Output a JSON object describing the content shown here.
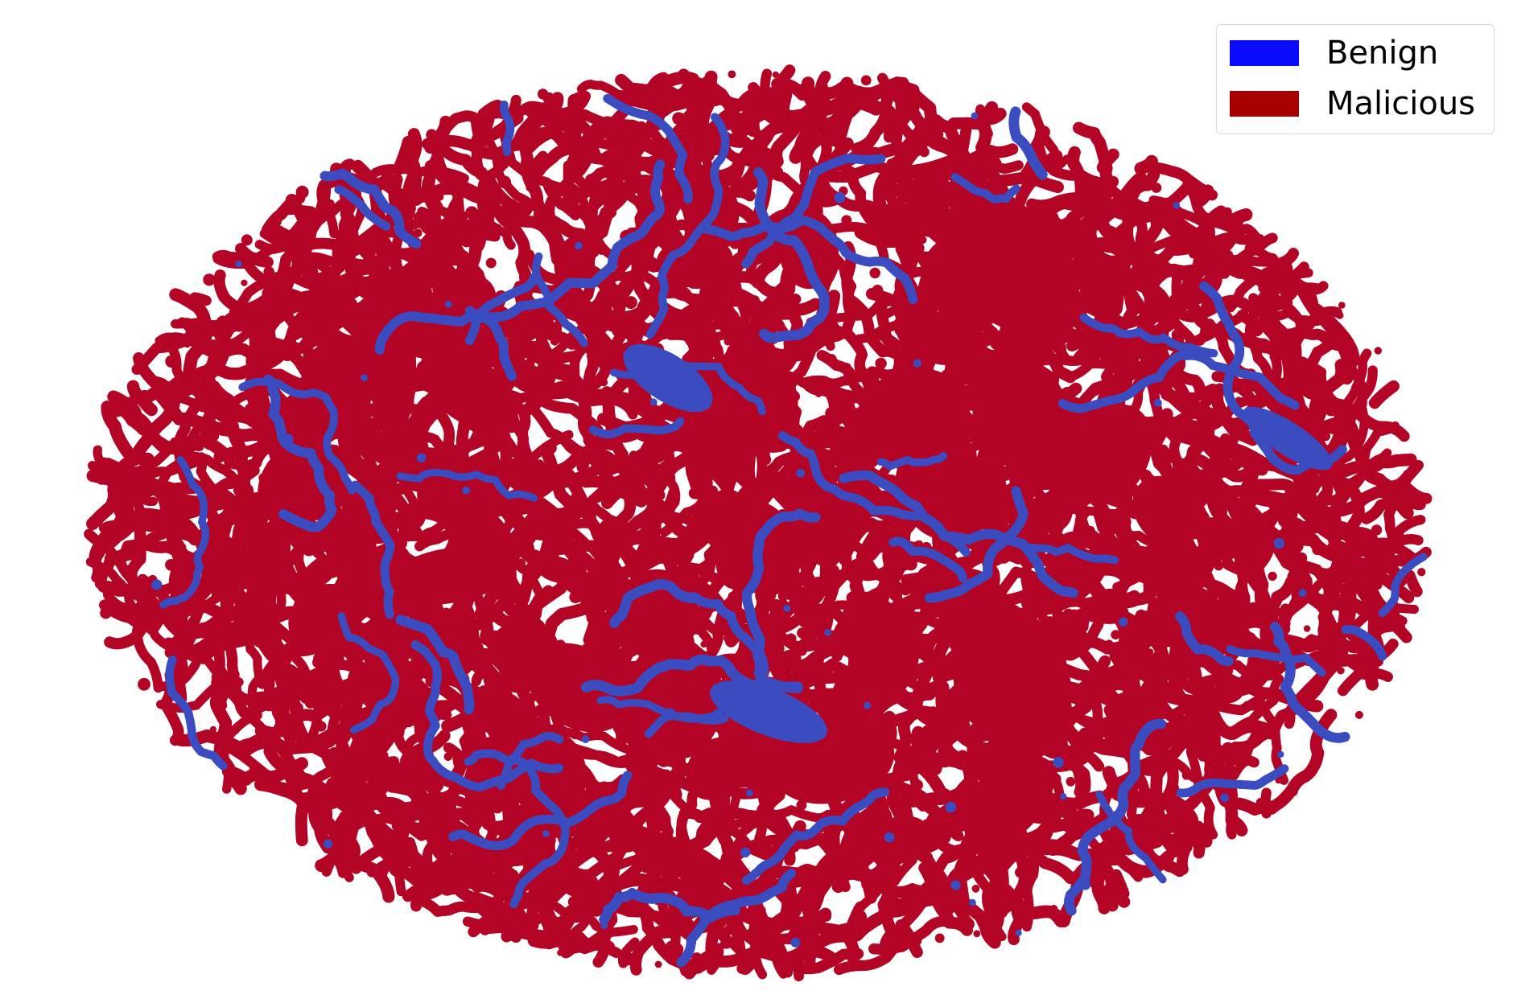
{
  "chart_data": {
    "type": "scatter",
    "title": "",
    "xlabel": "",
    "ylabel": "",
    "axes_visible": false,
    "grid": false,
    "legend_position": "top-right",
    "series": [
      {
        "name": "Benign",
        "legend_color": "#0a0aff",
        "point_color": "#3b4cc0",
        "share_estimate": 0.05
      },
      {
        "name": "Malicious",
        "legend_color": "#a80000",
        "point_color": "#b40426",
        "share_estimate": 0.95
      }
    ],
    "description_hint": "t-SNE style embedding of points forming an elliptical cloud; dense red clusters and curved strands with a few blue strands and blobs"
  }
}
